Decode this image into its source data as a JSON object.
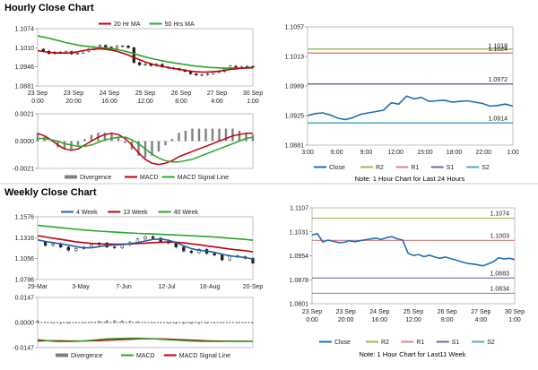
{
  "hourly_title": "Hourly Close Chart",
  "weekly_title": "Weekly Close Chart",
  "colors": {
    "price": "#222222",
    "ma_a": "#c0000a",
    "ma_b": "#2aa62a",
    "ma_c": "#1f5fa8",
    "close": "#1f6eb4",
    "r2": "#9bbb59",
    "r1": "#d88a8a",
    "s1": "#8064a2",
    "s2": "#4bacc6",
    "hist": "#808080",
    "signal": "#2aa62a",
    "macd": "#c0000a"
  },
  "chart_data": [
    {
      "type": "line",
      "name": "hourly-candles",
      "legend": [
        {
          "label": "20 Hr MA",
          "color_key": "ma_a"
        },
        {
          "label": "50 Hrs MA",
          "color_key": "ma_b"
        }
      ],
      "ylim": [
        1.0881,
        1.1074
      ],
      "y_ticks": [
        "1.1074",
        "1.1010",
        "1.0946",
        "1.0881"
      ],
      "x_ticks": [
        "23 Sep\n0:00",
        "23 Sep\n20:00",
        "24 Sep\n16:00",
        "25 Sep\n12:00",
        "26 Sep\n8:00",
        "27 Sep\n4:00",
        "30 Sep\n1:00"
      ],
      "series": [
        {
          "name": "price",
          "color_key": "price",
          "values": [
            1.1005,
            1.0998,
            1.099,
            1.0995,
            1.0993,
            1.0997,
            1.0989,
            1.0992,
            1.0998,
            1.1005,
            1.1013,
            1.1018,
            1.1012,
            1.1009,
            1.1015,
            1.1016,
            1.101,
            1.096,
            1.0952,
            1.0955,
            1.095,
            1.0954,
            1.0945,
            1.0942,
            1.094,
            1.0935,
            1.093,
            1.0922,
            1.0918,
            1.0919,
            1.0921,
            1.0927,
            1.093,
            1.0939,
            1.0948,
            1.0942,
            1.0945,
            1.0947,
            1.0944
          ]
        },
        {
          "name": "20 Hr MA",
          "color_key": "ma_a",
          "values": [
            1.1,
            1.0997,
            1.0994,
            1.0993,
            1.0992,
            1.0992,
            1.0993,
            1.0996,
            1.1,
            1.1003,
            1.1005,
            1.1006,
            1.1005,
            1.1002,
            1.0998,
            1.0992,
            1.0985,
            1.0977,
            1.0969,
            1.0962,
            1.0956,
            1.0951,
            1.0947,
            1.0943,
            1.094,
            1.0937,
            1.0934,
            1.0931,
            1.0929,
            1.0928,
            1.0928,
            1.0929,
            1.0931,
            1.0934,
            1.0937,
            1.0939,
            1.0941,
            1.0942,
            1.0943
          ]
        },
        {
          "name": "50 Hrs MA",
          "color_key": "ma_b",
          "values": [
            1.105,
            1.1046,
            1.1042,
            1.1037,
            1.1032,
            1.1027,
            1.1023,
            1.1019,
            1.1016,
            1.1014,
            1.1012,
            1.101,
            1.1009,
            1.1007,
            1.1004,
            1.1,
            1.0995,
            1.099,
            1.0984,
            1.0979,
            1.0974,
            1.097,
            1.0966,
            1.0962,
            1.0959,
            1.0956,
            1.0953,
            1.095,
            1.0948,
            1.0946,
            1.0944,
            1.0943,
            1.0942,
            1.0941,
            1.0941,
            1.0941,
            1.0941,
            1.0942,
            1.0942
          ]
        }
      ]
    },
    {
      "type": "line",
      "name": "hourly-macd",
      "legend": [
        {
          "label": "Divergence",
          "color_key": "hist"
        },
        {
          "label": "MACD",
          "color_key": "macd"
        },
        {
          "label": "MACD Signal Line",
          "color_key": "signal"
        }
      ],
      "ylim": [
        -0.0021,
        0.0021
      ],
      "y_ticks": [
        "0.0021",
        "0.0000",
        "-0.0021"
      ],
      "series": [
        {
          "name": "MACD",
          "color_key": "macd",
          "values": [
            0.0006,
            0.0004,
            0.0001,
            -0.0003,
            -0.0006,
            -0.0007,
            -0.0006,
            -0.0003,
            0.0,
            0.0003,
            0.0005,
            0.0006,
            0.0005,
            0.0002,
            -0.0003,
            -0.0009,
            -0.0014,
            -0.0017,
            -0.0018,
            -0.0017,
            -0.0015,
            -0.0012,
            -0.001,
            -0.0008,
            -0.0006,
            -0.0004,
            -0.0002,
            0.0,
            0.0002,
            0.0004,
            0.0005,
            0.0006,
            0.0006
          ]
        },
        {
          "name": "MACD Signal Line",
          "color_key": "signal",
          "values": [
            0.0002,
            0.0002,
            0.0001,
            0.0,
            -0.0002,
            -0.0003,
            -0.0004,
            -0.0004,
            -0.0003,
            -0.0001,
            0.0001,
            0.0002,
            0.0003,
            0.0003,
            0.0001,
            -0.0002,
            -0.0006,
            -0.001,
            -0.0013,
            -0.0015,
            -0.0016,
            -0.0016,
            -0.0015,
            -0.0014,
            -0.0012,
            -0.001,
            -0.0008,
            -0.0006,
            -0.0004,
            -0.0002,
            0.0,
            0.0002,
            0.0003
          ]
        }
      ]
    },
    {
      "type": "line",
      "name": "hourly-pivots",
      "title": "Note: 1 Hour Chart for Last 24 Hours",
      "legend": [
        {
          "label": "Close",
          "color_key": "close"
        },
        {
          "label": "R2",
          "color_key": "r2"
        },
        {
          "label": "R1",
          "color_key": "r1"
        },
        {
          "label": "S1",
          "color_key": "s1"
        },
        {
          "label": "S2",
          "color_key": "s2"
        }
      ],
      "ylim": [
        1.0881,
        1.1057
      ],
      "y_ticks": [
        "1.1057",
        "1.1013",
        "1.0969",
        "1.0925",
        "1.0881"
      ],
      "x_ticks": [
        "3:00",
        "6:00",
        "9:00",
        "12:00",
        "15:00",
        "18:00",
        "22:00",
        "1:00"
      ],
      "levels": [
        {
          "name": "R2",
          "value": 1.1024,
          "label": "1.1024",
          "color_key": "r2"
        },
        {
          "name": "R1",
          "value": 1.1018,
          "label": "1.1018",
          "color_key": "r1"
        },
        {
          "name": "S1",
          "value": 1.0972,
          "label": "1.0972",
          "color_key": "s1"
        },
        {
          "name": "S2",
          "value": 1.0914,
          "label": "1.0914",
          "color_key": "s2"
        }
      ],
      "series": [
        {
          "name": "Close",
          "color_key": "close",
          "values": [
            1.0925,
            1.0928,
            1.0929,
            1.0926,
            1.0921,
            1.0919,
            1.0922,
            1.0927,
            1.0929,
            1.0931,
            1.0933,
            1.0944,
            1.0942,
            1.0954,
            1.095,
            1.0952,
            1.0946,
            1.0947,
            1.0948,
            1.0945,
            1.0946,
            1.0947,
            1.0945,
            1.0943,
            1.0939,
            1.094,
            1.0942,
            1.0939
          ]
        }
      ]
    },
    {
      "type": "line",
      "name": "weekly-candles",
      "legend": [
        {
          "label": "4 Week",
          "color_key": "ma_c"
        },
        {
          "label": "13 Week",
          "color_key": "ma_a"
        },
        {
          "label": "40 Week",
          "color_key": "ma_b"
        }
      ],
      "ylim": [
        1.0796,
        1.1576
      ],
      "y_ticks": [
        "1.1576",
        "1.1316",
        "1.1056",
        "1.0796"
      ],
      "x_ticks": [
        "29-Mar",
        "3-May",
        "7-Jun",
        "12-Jul",
        "16-Aug",
        "20-Sep"
      ],
      "series": [
        {
          "name": "price",
          "color_key": "price",
          "values": [
            1.126,
            1.122,
            1.124,
            1.12,
            1.116,
            1.118,
            1.12,
            1.123,
            1.125,
            1.12,
            1.119,
            1.123,
            1.126,
            1.13,
            1.133,
            1.131,
            1.127,
            1.125,
            1.12,
            1.115,
            1.113,
            1.117,
            1.112,
            1.11,
            1.104,
            1.109,
            1.108,
            1.106,
            1.1
          ]
        },
        {
          "name": "4 Week",
          "color_key": "ma_c",
          "values": [
            1.129,
            1.127,
            1.1255,
            1.124,
            1.1225,
            1.1205,
            1.119,
            1.119,
            1.1205,
            1.122,
            1.1225,
            1.123,
            1.124,
            1.1255,
            1.1275,
            1.1295,
            1.13,
            1.1285,
            1.1255,
            1.1215,
            1.118,
            1.116,
            1.115,
            1.1135,
            1.111,
            1.109,
            1.108,
            1.107,
            1.105
          ]
        },
        {
          "name": "13 Week",
          "color_key": "ma_a",
          "values": [
            1.134,
            1.1325,
            1.131,
            1.1295,
            1.128,
            1.1265,
            1.1255,
            1.1245,
            1.124,
            1.1238,
            1.1236,
            1.1236,
            1.1238,
            1.1242,
            1.1248,
            1.1255,
            1.126,
            1.1262,
            1.126,
            1.1252,
            1.124,
            1.1228,
            1.1215,
            1.1202,
            1.1188,
            1.1175,
            1.1165,
            1.1155,
            1.114
          ]
        },
        {
          "name": "40 Week",
          "color_key": "ma_b",
          "values": [
            1.147,
            1.146,
            1.145,
            1.144,
            1.143,
            1.142,
            1.1412,
            1.1405,
            1.1398,
            1.1392,
            1.1386,
            1.138,
            1.1375,
            1.137,
            1.1366,
            1.1362,
            1.1358,
            1.1354,
            1.135,
            1.1345,
            1.134,
            1.1335,
            1.133,
            1.1325,
            1.1318,
            1.131,
            1.1302,
            1.1295,
            1.1285
          ]
        }
      ]
    },
    {
      "type": "line",
      "name": "weekly-macd",
      "legend": [
        {
          "label": "Divergence",
          "color_key": "hist"
        },
        {
          "label": "MACD",
          "color_key": "signal"
        },
        {
          "label": "MACD Signal Line",
          "color_key": "macd"
        }
      ],
      "ylim": [
        -0.0147,
        0.0147
      ],
      "y_ticks": [
        "0.0147",
        "0.0000",
        "-0.0147"
      ],
      "series": [
        {
          "name": "MACD",
          "color_key": "signal",
          "values": [
            -0.01,
            -0.0105,
            -0.011,
            -0.0112,
            -0.0112,
            -0.011,
            -0.0108,
            -0.0104,
            -0.01,
            -0.0096,
            -0.0094,
            -0.0093,
            -0.0092,
            -0.0092,
            -0.0093,
            -0.0095,
            -0.0098,
            -0.0101,
            -0.0104,
            -0.0106,
            -0.0108,
            -0.011,
            -0.0111,
            -0.0111,
            -0.0111,
            -0.011,
            -0.011,
            -0.011,
            -0.011
          ]
        },
        {
          "name": "MACD Signal Line",
          "color_key": "macd",
          "values": [
            -0.0108,
            -0.0107,
            -0.0107,
            -0.0107,
            -0.0108,
            -0.0108,
            -0.0108,
            -0.0107,
            -0.0106,
            -0.0104,
            -0.0102,
            -0.01,
            -0.0098,
            -0.0096,
            -0.0095,
            -0.0095,
            -0.0096,
            -0.0097,
            -0.0099,
            -0.0101,
            -0.0103,
            -0.0105,
            -0.0107,
            -0.0108,
            -0.0109,
            -0.0109,
            -0.011,
            -0.011,
            -0.011
          ]
        }
      ]
    },
    {
      "type": "line",
      "name": "weekly-pivots",
      "title": "Note: 1 Hour Chart for Last11 Week",
      "legend": [
        {
          "label": "Close",
          "color_key": "close"
        },
        {
          "label": "R2",
          "color_key": "r2"
        },
        {
          "label": "R1",
          "color_key": "r1"
        },
        {
          "label": "S1",
          "color_key": "s1"
        },
        {
          "label": "S2",
          "color_key": "s2"
        }
      ],
      "ylim": [
        1.0801,
        1.1107
      ],
      "y_ticks": [
        "1.1107",
        "1.1031",
        "1.0954",
        "1.0878",
        "1.0801"
      ],
      "x_ticks": [
        "23 Sep\n0:00",
        "23 Sep\n20:00",
        "24 Sep\n16:00",
        "25 Sep\n12:00",
        "26 Sep\n8:00",
        "27 Sep\n4:00",
        "30 Sep\n1:00"
      ],
      "levels": [
        {
          "name": "R2",
          "value": 1.1074,
          "label": "1.1074",
          "color_key": "r2"
        },
        {
          "name": "R1",
          "value": 1.1003,
          "label": "1.1003",
          "color_key": "r1"
        },
        {
          "name": "S1",
          "value": 1.0883,
          "label": "1.0883",
          "color_key": "s1"
        },
        {
          "name": "S2",
          "value": 1.0834,
          "label": "1.0834",
          "color_key": "s2"
        }
      ],
      "series": [
        {
          "name": "Close",
          "color_key": "close",
          "values": [
            1.102,
            1.1025,
            1.0998,
            1.1004,
            1.1,
            1.0996,
            1.0997,
            1.1002,
            1.0999,
            1.1002,
            1.1005,
            1.1008,
            1.101,
            1.1006,
            1.1012,
            1.1015,
            1.1008,
            1.1004,
            1.0962,
            1.0955,
            1.0958,
            1.0951,
            1.0956,
            1.095,
            1.0946,
            1.095,
            1.0945,
            1.094,
            1.0935,
            1.093,
            1.0928,
            1.0925,
            1.0922,
            1.0928,
            1.0935,
            1.0948,
            1.0944,
            1.0946,
            1.0942
          ]
        }
      ]
    }
  ]
}
